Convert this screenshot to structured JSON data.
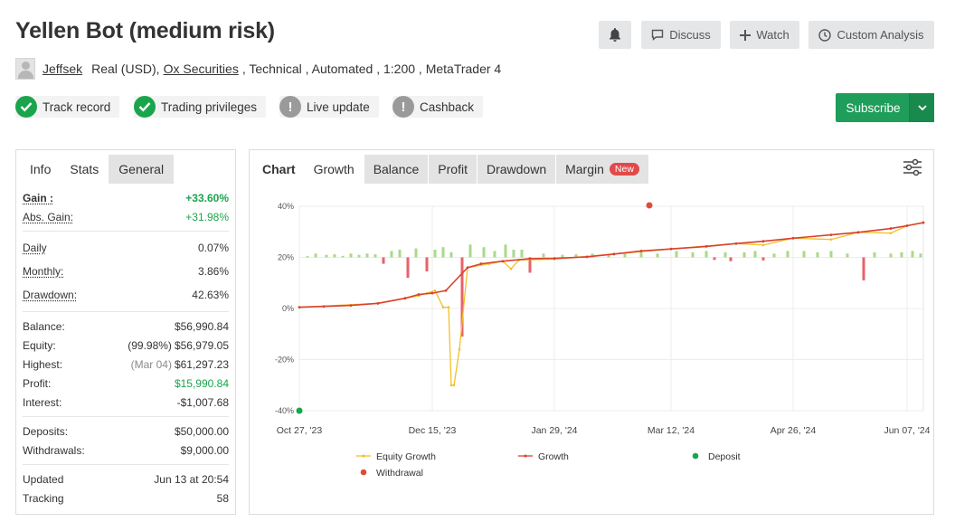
{
  "header": {
    "title": "Yellen Bot (medium risk)",
    "buttons": {
      "discuss": "Discuss",
      "watch": "Watch",
      "custom_analysis": "Custom Analysis"
    }
  },
  "meta": {
    "user": "Jeffsek",
    "account_type": "Real (USD),",
    "broker": "Ox Securities",
    "details": ", Technical , Automated , 1:200 , MetaTrader 4"
  },
  "badges": {
    "track_record": "Track record",
    "trading_privileges": "Trading privileges",
    "live_update": "Live update",
    "cashback": "Cashback"
  },
  "subscribe": {
    "label": "Subscribe"
  },
  "left_tabs": {
    "info": "Info",
    "stats": "Stats",
    "general": "General"
  },
  "stats": {
    "gain": {
      "label": "Gain :",
      "value": "+33.60%"
    },
    "abs_gain": {
      "label": "Abs. Gain:",
      "value": "+31.98%"
    },
    "daily": {
      "label": "Daily",
      "value": "0.07%"
    },
    "monthly": {
      "label": "Monthly:",
      "value": "3.86%"
    },
    "drawdown": {
      "label": "Drawdown:",
      "value": "42.63%"
    },
    "balance": {
      "label": "Balance:",
      "value": "$56,990.84"
    },
    "equity": {
      "label": "Equity:",
      "sub": "(99.98%)",
      "value": "$56,979.05"
    },
    "highest": {
      "label": "Highest:",
      "sub": "(Mar 04)",
      "value": "$61,297.23"
    },
    "profit": {
      "label": "Profit:",
      "value": "$15,990.84"
    },
    "interest": {
      "label": "Interest:",
      "value": "-$1,007.68"
    },
    "deposits": {
      "label": "Deposits:",
      "value": "$50,000.00"
    },
    "withdrawals": {
      "label": "Withdrawals:",
      "value": "$9,000.00"
    },
    "updated": {
      "label": "Updated",
      "value": "Jun 13 at 20:54"
    },
    "tracking": {
      "label": "Tracking",
      "value": "58"
    }
  },
  "chart_tabs": {
    "chart": "Chart",
    "growth": "Growth",
    "balance": "Balance",
    "profit": "Profit",
    "drawdown": "Drawdown",
    "margin": "Margin",
    "new_badge": "New"
  },
  "colors": {
    "equity": "#f2c02a",
    "growth": "#d9412d",
    "deposit": "#1aa54c",
    "withdrawal": "#e04a3a",
    "bar_pos": "#a9d98a",
    "bar_neg": "#e8616a",
    "subscribe": "#1f9d5a",
    "gain_green": "#1aa54c"
  },
  "chart_data": {
    "type": "line",
    "ylim": [
      -40,
      40
    ],
    "y_ticks": [
      40,
      20,
      0,
      -20,
      -40
    ],
    "y_tick_labels": [
      "40%",
      "20%",
      "0%",
      "-20%",
      "-40%"
    ],
    "x_range": [
      "2023-10-27",
      "2024-06-13"
    ],
    "x_ticks": [
      "2023-10-27",
      "2023-12-15",
      "2024-01-29",
      "2024-03-12",
      "2024-04-26",
      "2024-06-07"
    ],
    "x_tick_labels": [
      "Oct 27, '23",
      "Dec 15, '23",
      "Jan 29, '24",
      "Mar 12, '24",
      "Apr 26, '24",
      "Jun 07, '24"
    ],
    "legend": [
      "Equity Growth",
      "Growth",
      "Deposit",
      "Withdrawal"
    ],
    "series": [
      {
        "name": "Growth",
        "x": [
          "2023-10-27",
          "2023-11-05",
          "2023-11-15",
          "2023-11-25",
          "2023-12-05",
          "2023-12-10",
          "2023-12-15",
          "2023-12-20",
          "2023-12-28",
          "2024-01-02",
          "2024-01-10",
          "2024-01-20",
          "2024-01-29",
          "2024-02-10",
          "2024-02-20",
          "2024-03-01",
          "2024-03-12",
          "2024-03-25",
          "2024-04-05",
          "2024-04-15",
          "2024-04-26",
          "2024-05-10",
          "2024-05-20",
          "2024-06-01",
          "2024-06-07",
          "2024-06-13"
        ],
        "values": [
          0.5,
          0.8,
          1.2,
          2,
          4,
          5.5,
          6,
          7,
          16,
          17.5,
          18.5,
          19.5,
          19.6,
          20.2,
          21.3,
          22.5,
          23.3,
          24.3,
          25.4,
          26.3,
          27.5,
          28.8,
          29.8,
          31.3,
          32.4,
          33.6
        ]
      },
      {
        "name": "Equity Growth",
        "x": [
          "2023-10-27",
          "2023-11-25",
          "2023-12-05",
          "2023-12-10",
          "2023-12-13",
          "2023-12-16",
          "2023-12-19",
          "2023-12-21",
          "2023-12-22",
          "2023-12-23",
          "2023-12-25",
          "2023-12-28",
          "2024-01-05",
          "2024-01-10",
          "2024-01-13",
          "2024-01-16",
          "2024-01-29",
          "2024-02-20",
          "2024-03-12",
          "2024-04-05",
          "2024-04-15",
          "2024-04-26",
          "2024-05-10",
          "2024-05-20",
          "2024-06-01",
          "2024-06-07",
          "2024-06-13"
        ],
        "values": [
          0.5,
          2,
          4,
          5,
          6,
          7,
          0.5,
          0.5,
          -30,
          -30,
          -16,
          16,
          17.5,
          18.5,
          15.5,
          19,
          19.3,
          21.3,
          23.3,
          25.4,
          24.8,
          27.5,
          27,
          29.8,
          29.5,
          32.4,
          33.6
        ]
      }
    ],
    "deposits": [
      {
        "x": "2023-10-27",
        "y": -40
      }
    ],
    "withdrawals": [
      {
        "x": "2024-03-04",
        "y": 40
      }
    ],
    "bars": [
      {
        "x": "2023-12-06",
        "v": -8
      },
      {
        "x": "2023-12-13",
        "v": -5.5
      },
      {
        "x": "2023-12-26",
        "v": -31
      },
      {
        "x": "2024-01-20",
        "v": -6
      },
      {
        "x": "2024-05-22",
        "v": -9
      },
      {
        "x": "2023-11-27",
        "v": -2.5
      },
      {
        "x": "2024-04-03",
        "v": -1.5
      },
      {
        "x": "2024-04-15",
        "v": -1.2
      },
      {
        "x": "2024-03-28",
        "v": -1
      },
      {
        "x": "2023-10-30",
        "v": 0.5
      },
      {
        "x": "2023-11-02",
        "v": 1.5
      },
      {
        "x": "2023-11-06",
        "v": 1
      },
      {
        "x": "2023-11-09",
        "v": 1.2
      },
      {
        "x": "2023-11-12",
        "v": 0.6
      },
      {
        "x": "2023-11-15",
        "v": 1.5
      },
      {
        "x": "2023-11-18",
        "v": 1
      },
      {
        "x": "2023-11-21",
        "v": 1.5
      },
      {
        "x": "2023-11-24",
        "v": 1.2
      },
      {
        "x": "2023-11-30",
        "v": 2.5
      },
      {
        "x": "2023-12-03",
        "v": 3
      },
      {
        "x": "2023-12-09",
        "v": 3.5
      },
      {
        "x": "2023-12-16",
        "v": 3
      },
      {
        "x": "2023-12-19",
        "v": 4
      },
      {
        "x": "2023-12-22",
        "v": 2
      },
      {
        "x": "2023-12-29",
        "v": 5
      },
      {
        "x": "2024-01-03",
        "v": 4
      },
      {
        "x": "2024-01-07",
        "v": 2.5
      },
      {
        "x": "2024-01-11",
        "v": 5
      },
      {
        "x": "2024-01-14",
        "v": 3
      },
      {
        "x": "2024-01-17",
        "v": 3
      },
      {
        "x": "2024-01-25",
        "v": 1.5
      },
      {
        "x": "2024-02-01",
        "v": 1
      },
      {
        "x": "2024-02-06",
        "v": 1.2
      },
      {
        "x": "2024-02-12",
        "v": 1.5
      },
      {
        "x": "2024-02-18",
        "v": 1
      },
      {
        "x": "2024-02-24",
        "v": 1.5
      },
      {
        "x": "2024-03-01",
        "v": 2
      },
      {
        "x": "2024-03-07",
        "v": 1.5
      },
      {
        "x": "2024-03-14",
        "v": 2.5
      },
      {
        "x": "2024-03-20",
        "v": 2
      },
      {
        "x": "2024-03-25",
        "v": 2.5
      },
      {
        "x": "2024-04-01",
        "v": 2
      },
      {
        "x": "2024-04-08",
        "v": 2
      },
      {
        "x": "2024-04-12",
        "v": 2.5
      },
      {
        "x": "2024-04-19",
        "v": 1.5
      },
      {
        "x": "2024-04-24",
        "v": 2.5
      },
      {
        "x": "2024-04-30",
        "v": 2.5
      },
      {
        "x": "2024-05-05",
        "v": 2
      },
      {
        "x": "2024-05-10",
        "v": 2.5
      },
      {
        "x": "2024-05-16",
        "v": 1.5
      },
      {
        "x": "2024-05-26",
        "v": 2
      },
      {
        "x": "2024-06-01",
        "v": 1.5
      },
      {
        "x": "2024-06-05",
        "v": 2
      },
      {
        "x": "2024-06-09",
        "v": 2.5
      },
      {
        "x": "2024-06-12",
        "v": 1.5
      }
    ]
  }
}
